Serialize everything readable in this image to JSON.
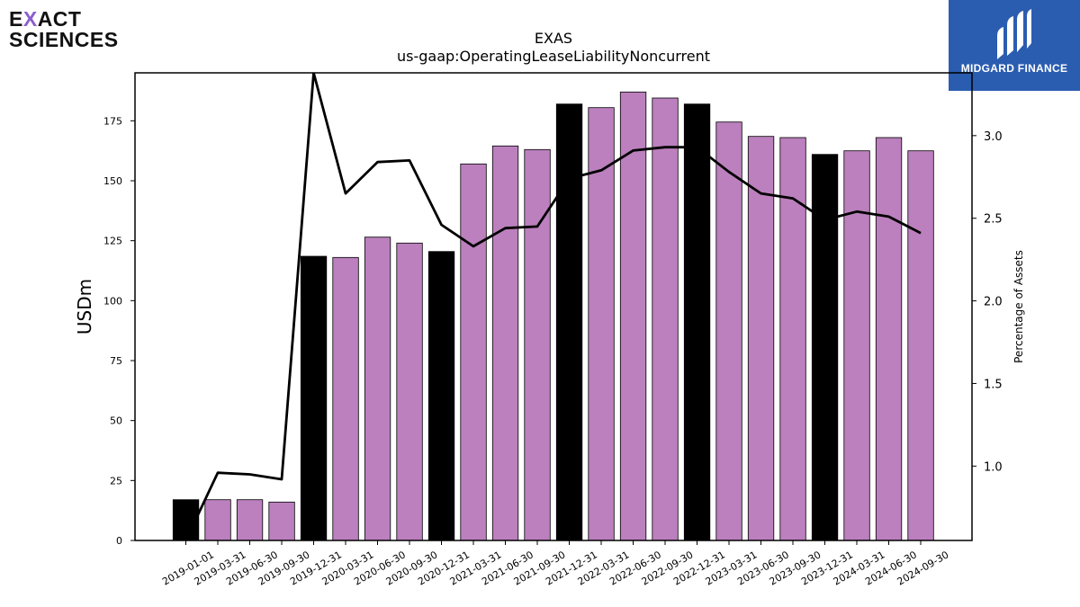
{
  "header": {
    "company": "EXACT SCIENCES",
    "company_line1_pre": "E",
    "company_line1_x": "X",
    "company_line1_post": "ACT",
    "company_line2": "SCIENCES",
    "brand": "MIDGARD FINANCE",
    "brand_color": "#2a5db0",
    "logo_accent": "#8b5fd1"
  },
  "chart_data": {
    "type": "bar",
    "title": "EXAS",
    "subtitle": "us-gaap:OperatingLeaseLiabilityNoncurrent",
    "ylabel": "USDm",
    "y2label": "Percentage of Assets",
    "ylim": [
      0,
      195
    ],
    "y2lim": [
      0.55,
      3.38
    ],
    "yticks": [
      0,
      25,
      50,
      75,
      100,
      125,
      150,
      175
    ],
    "y2ticks": [
      "1.0",
      "1.5",
      "2.0",
      "2.5",
      "3.0"
    ],
    "categories": [
      "2019-01-01",
      "2019-03-31",
      "2019-06-30",
      "2019-09-30",
      "2019-12-31",
      "2020-03-31",
      "2020-06-30",
      "2020-09-30",
      "2020-12-31",
      "2021-03-31",
      "2021-06-30",
      "2021-09-30",
      "2021-12-31",
      "2022-03-31",
      "2022-06-30",
      "2022-09-30",
      "2022-12-31",
      "2023-03-31",
      "2023-06-30",
      "2023-09-30",
      "2023-12-31",
      "2024-03-31",
      "2024-06-30",
      "2024-09-30"
    ],
    "series": [
      {
        "kind": "bar",
        "values": [
          17,
          17,
          17,
          16,
          118.5,
          118,
          126.5,
          124,
          120.5,
          157,
          164.5,
          163,
          182,
          180.5,
          187,
          184.5,
          182,
          174.5,
          168.5,
          168,
          161,
          162.5,
          168,
          162.5
        ]
      },
      {
        "kind": "line",
        "axis": "right",
        "values": [
          0.55,
          0.96,
          0.95,
          0.92,
          3.38,
          2.65,
          2.84,
          2.85,
          2.46,
          2.33,
          2.44,
          2.45,
          2.74,
          2.79,
          2.91,
          2.93,
          2.93,
          2.78,
          2.65,
          2.62,
          2.49,
          2.54,
          2.51,
          2.41
        ]
      }
    ],
    "annual_dates": [
      "2019-01-01",
      "2019-12-31",
      "2020-12-31",
      "2021-12-31",
      "2022-12-31",
      "2023-12-31"
    ],
    "colors": {
      "annual_bar": "#000000",
      "quarter_bar": "#bb80bd",
      "line": "#000000"
    },
    "grid": false,
    "legend": "none"
  }
}
